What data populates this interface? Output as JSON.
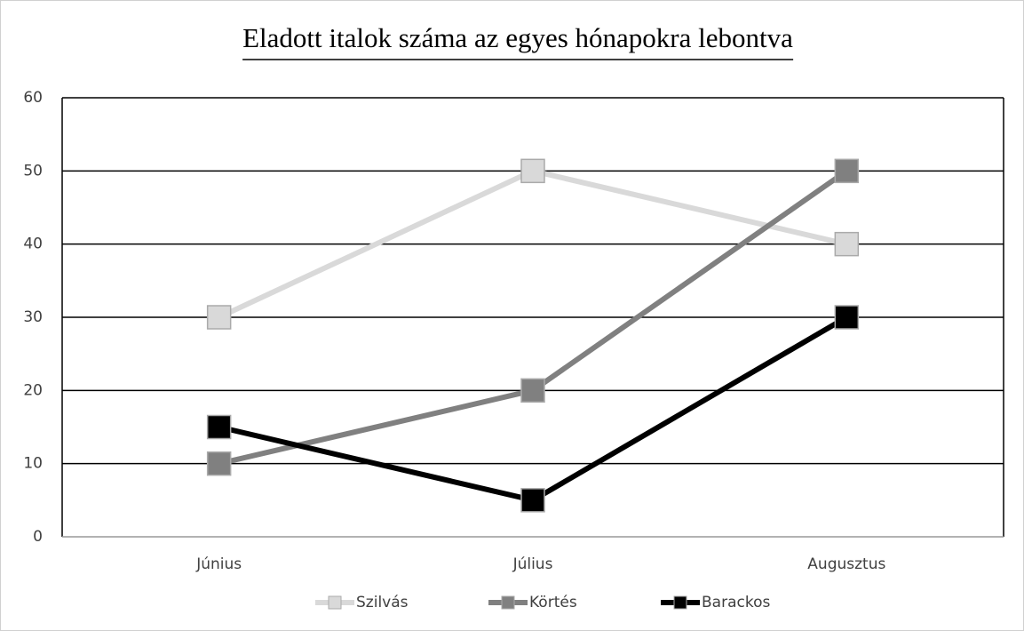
{
  "chart_data": {
    "type": "line",
    "title": "Eladott italok száma az egyes hónapokra lebontva",
    "categories": [
      "Június",
      "Július",
      "Augusztus"
    ],
    "series": [
      {
        "name": "Szilvás",
        "color": "#d9d9d9",
        "values": [
          30,
          50,
          40
        ]
      },
      {
        "name": "Körtés",
        "color": "#808080",
        "values": [
          10,
          20,
          50
        ]
      },
      {
        "name": "Barackos",
        "color": "#000000",
        "values": [
          15,
          5,
          30
        ]
      }
    ],
    "ylim": [
      0,
      60
    ],
    "yticks": [
      0,
      10,
      20,
      30,
      40,
      50,
      60
    ],
    "grid": true,
    "legend": "bottom"
  }
}
